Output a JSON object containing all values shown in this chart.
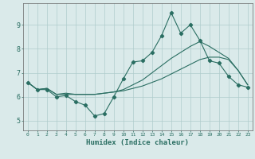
{
  "xlabel": "Humidex (Indice chaleur)",
  "bg_color": "#daeaea",
  "line_color": "#2a6e62",
  "grid_color": "#b0cccc",
  "xlim": [
    -0.5,
    23.5
  ],
  "ylim": [
    4.6,
    9.9
  ],
  "xticks": [
    0,
    1,
    2,
    3,
    4,
    5,
    6,
    7,
    8,
    9,
    10,
    11,
    12,
    13,
    14,
    15,
    16,
    17,
    18,
    19,
    20,
    21,
    22,
    23
  ],
  "yticks": [
    5,
    6,
    7,
    8,
    9
  ],
  "line1_x": [
    0,
    1,
    2,
    3,
    4,
    5,
    6,
    7,
    8,
    9,
    10,
    11,
    12,
    13,
    14,
    15,
    16,
    17,
    18,
    19,
    20,
    21,
    22,
    23
  ],
  "line1_y": [
    6.6,
    6.3,
    6.3,
    6.0,
    6.05,
    5.8,
    5.65,
    5.2,
    5.3,
    6.0,
    6.75,
    7.45,
    7.5,
    7.85,
    8.55,
    9.5,
    8.65,
    9.0,
    8.35,
    7.5,
    7.4,
    6.85,
    6.5,
    6.4
  ],
  "line2_x": [
    0,
    1,
    2,
    3,
    4,
    5,
    6,
    7,
    8,
    9,
    10,
    11,
    12,
    13,
    14,
    15,
    16,
    17,
    18,
    19,
    20,
    21,
    22,
    23
  ],
  "line2_y": [
    6.6,
    6.3,
    6.35,
    6.1,
    6.15,
    6.1,
    6.1,
    6.1,
    6.15,
    6.2,
    6.25,
    6.35,
    6.45,
    6.6,
    6.75,
    6.95,
    7.15,
    7.35,
    7.55,
    7.65,
    7.65,
    7.55,
    7.1,
    6.5
  ],
  "line3_x": [
    0,
    1,
    2,
    3,
    4,
    5,
    6,
    7,
    8,
    9,
    10,
    11,
    12,
    13,
    14,
    15,
    16,
    17,
    18,
    19,
    20,
    21,
    22,
    23
  ],
  "line3_y": [
    6.6,
    6.3,
    6.35,
    6.1,
    6.1,
    6.1,
    6.1,
    6.1,
    6.15,
    6.2,
    6.3,
    6.5,
    6.7,
    7.0,
    7.3,
    7.6,
    7.85,
    8.1,
    8.3,
    8.1,
    7.85,
    7.6,
    7.1,
    6.5
  ]
}
